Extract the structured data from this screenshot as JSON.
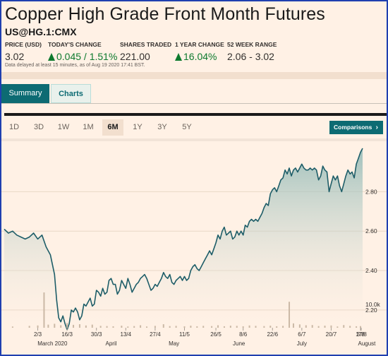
{
  "header": {
    "title": "Copper High Grade Front Month Futures",
    "symbol": "US@HG.1:CMX",
    "stats": [
      {
        "label": "PRICE (USD)",
        "value": "3.02",
        "green": false,
        "arrow": false
      },
      {
        "label": "TODAY'S CHANGE",
        "value": "0.045 / 1.51%",
        "green": true,
        "arrow": true
      },
      {
        "label": "SHARES TRADED",
        "value": "221.00",
        "green": false,
        "arrow": false
      },
      {
        "label": "1 YEAR CHANGE",
        "value": "16.04%",
        "green": true,
        "arrow": true
      },
      {
        "label": "52 WEEK RANGE",
        "value": "2.06 - 3.02",
        "green": false,
        "arrow": false
      }
    ],
    "delay_note": "Data delayed at least 15 minutes, as of Aug 19 2020 17:41 BST."
  },
  "tabs": [
    {
      "label": "Summary",
      "active": true
    },
    {
      "label": "Charts",
      "active": false
    }
  ],
  "range_buttons": [
    "1D",
    "3D",
    "1W",
    "1M",
    "6M",
    "1Y",
    "3Y",
    "5Y"
  ],
  "selected_range": "6M",
  "comparisons_label": "Comparisons",
  "comparisons_icon": "chevron-right-icon",
  "colors": {
    "accent": "#0d6b73",
    "positive": "#0d7a2e",
    "background": "#fff1e5",
    "frame": "#1f3fb0"
  },
  "chart_data": {
    "type": "area",
    "y_ticks": [
      "2.80",
      "2.60",
      "2.40",
      "2.20"
    ],
    "ylim": [
      2.05,
      3.02
    ],
    "volume_tick": "10.0k",
    "volume_max": 17000,
    "x_day_range": [
      0,
      171
    ],
    "x_ticks": [
      {
        "label": "2/3",
        "day": 16
      },
      {
        "label": "16/3",
        "day": 30
      },
      {
        "label": "30/3",
        "day": 44
      },
      {
        "label": "13/4",
        "day": 58
      },
      {
        "label": "27/4",
        "day": 72
      },
      {
        "label": "11/5",
        "day": 86
      },
      {
        "label": "26/5",
        "day": 101
      },
      {
        "label": "8/6",
        "day": 114
      },
      {
        "label": "22/6",
        "day": 128
      },
      {
        "label": "6/7",
        "day": 142
      },
      {
        "label": "20/7",
        "day": 156
      },
      {
        "label": "3/8",
        "day": 170
      },
      {
        "label": "17/8",
        "day": 184
      }
    ],
    "months": [
      {
        "label": "March 2020",
        "day": 23
      },
      {
        "label": "April",
        "day": 51
      },
      {
        "label": "May",
        "day": 81
      },
      {
        "label": "June",
        "day": 112
      },
      {
        "label": "July",
        "day": 142
      },
      {
        "label": "August",
        "day": 173
      }
    ],
    "price_points": [
      [
        0,
        2.61
      ],
      [
        2,
        2.59
      ],
      [
        4,
        2.6
      ],
      [
        6,
        2.58
      ],
      [
        8,
        2.57
      ],
      [
        10,
        2.56
      ],
      [
        12,
        2.57
      ],
      [
        14,
        2.59
      ],
      [
        16,
        2.56
      ],
      [
        18,
        2.58
      ],
      [
        20,
        2.52
      ],
      [
        22,
        2.48
      ],
      [
        24,
        2.38
      ],
      [
        25,
        2.25
      ],
      [
        26,
        2.16
      ],
      [
        27,
        2.14
      ],
      [
        28,
        2.17
      ],
      [
        29,
        2.13
      ],
      [
        30,
        2.1
      ],
      [
        31,
        2.13
      ],
      [
        32,
        2.2
      ],
      [
        33,
        2.19
      ],
      [
        34,
        2.21
      ],
      [
        35,
        2.19
      ],
      [
        36,
        2.15
      ],
      [
        37,
        2.17
      ],
      [
        38,
        2.23
      ],
      [
        39,
        2.22
      ],
      [
        40,
        2.24
      ],
      [
        41,
        2.26
      ],
      [
        42,
        2.22
      ],
      [
        43,
        2.23
      ],
      [
        44,
        2.3
      ],
      [
        45,
        2.29
      ],
      [
        46,
        2.27
      ],
      [
        47,
        2.31
      ],
      [
        48,
        2.28
      ],
      [
        49,
        2.29
      ],
      [
        50,
        2.35
      ],
      [
        51,
        2.36
      ],
      [
        52,
        2.33
      ],
      [
        53,
        2.33
      ],
      [
        54,
        2.28
      ],
      [
        55,
        2.3
      ],
      [
        56,
        2.35
      ],
      [
        57,
        2.33
      ],
      [
        58,
        2.31
      ],
      [
        59,
        2.36
      ],
      [
        60,
        2.33
      ],
      [
        61,
        2.29
      ],
      [
        62,
        2.31
      ],
      [
        63,
        2.33
      ],
      [
        64,
        2.34
      ],
      [
        65,
        2.36
      ],
      [
        66,
        2.37
      ],
      [
        67,
        2.38
      ],
      [
        68,
        2.36
      ],
      [
        69,
        2.33
      ],
      [
        70,
        2.3
      ],
      [
        71,
        2.31
      ],
      [
        72,
        2.33
      ],
      [
        73,
        2.32
      ],
      [
        74,
        2.34
      ],
      [
        75,
        2.36
      ],
      [
        76,
        2.39
      ],
      [
        77,
        2.37
      ],
      [
        78,
        2.36
      ],
      [
        79,
        2.38
      ],
      [
        80,
        2.34
      ],
      [
        81,
        2.33
      ],
      [
        82,
        2.35
      ],
      [
        83,
        2.36
      ],
      [
        84,
        2.37
      ],
      [
        85,
        2.35
      ],
      [
        86,
        2.37
      ],
      [
        87,
        2.35
      ],
      [
        88,
        2.36
      ],
      [
        89,
        2.4
      ],
      [
        90,
        2.42
      ],
      [
        91,
        2.43
      ],
      [
        92,
        2.41
      ],
      [
        93,
        2.4
      ],
      [
        94,
        2.42
      ],
      [
        95,
        2.44
      ],
      [
        96,
        2.46
      ],
      [
        97,
        2.48
      ],
      [
        98,
        2.5
      ],
      [
        99,
        2.48
      ],
      [
        100,
        2.51
      ],
      [
        101,
        2.54
      ],
      [
        102,
        2.58
      ],
      [
        103,
        2.56
      ],
      [
        104,
        2.6
      ],
      [
        105,
        2.62
      ],
      [
        106,
        2.58
      ],
      [
        107,
        2.59
      ],
      [
        108,
        2.6
      ],
      [
        109,
        2.56
      ],
      [
        110,
        2.57
      ],
      [
        111,
        2.6
      ],
      [
        112,
        2.58
      ],
      [
        113,
        2.6
      ],
      [
        114,
        2.58
      ],
      [
        115,
        2.63
      ],
      [
        116,
        2.62
      ],
      [
        117,
        2.65
      ],
      [
        118,
        2.66
      ],
      [
        119,
        2.65
      ],
      [
        120,
        2.66
      ],
      [
        121,
        2.65
      ],
      [
        122,
        2.67
      ],
      [
        123,
        2.69
      ],
      [
        124,
        2.72
      ],
      [
        125,
        2.74
      ],
      [
        126,
        2.73
      ],
      [
        127,
        2.79
      ],
      [
        128,
        2.81
      ],
      [
        129,
        2.82
      ],
      [
        130,
        2.8
      ],
      [
        131,
        2.83
      ],
      [
        132,
        2.86
      ],
      [
        133,
        2.87
      ],
      [
        134,
        2.91
      ],
      [
        135,
        2.89
      ],
      [
        136,
        2.92
      ],
      [
        137,
        2.88
      ],
      [
        138,
        2.91
      ],
      [
        139,
        2.92
      ],
      [
        140,
        2.9
      ],
      [
        141,
        2.92
      ],
      [
        142,
        2.94
      ],
      [
        143,
        2.92
      ],
      [
        144,
        2.91
      ],
      [
        145,
        2.91
      ],
      [
        146,
        2.92
      ],
      [
        147,
        2.91
      ],
      [
        148,
        2.92
      ],
      [
        149,
        2.91
      ],
      [
        150,
        2.86
      ],
      [
        151,
        2.88
      ],
      [
        152,
        2.93
      ],
      [
        153,
        2.91
      ],
      [
        154,
        2.9
      ],
      [
        155,
        2.8
      ],
      [
        156,
        2.84
      ],
      [
        157,
        2.88
      ],
      [
        158,
        2.86
      ],
      [
        159,
        2.88
      ],
      [
        160,
        2.83
      ],
      [
        161,
        2.8
      ],
      [
        162,
        2.84
      ],
      [
        163,
        2.88
      ],
      [
        164,
        2.91
      ],
      [
        165,
        2.89
      ],
      [
        166,
        2.9
      ],
      [
        167,
        2.87
      ],
      [
        168,
        2.94
      ],
      [
        169,
        2.97
      ],
      [
        170,
        3.0
      ],
      [
        171,
        3.02
      ]
    ],
    "volume_bars": [
      [
        4,
        600
      ],
      [
        12,
        900
      ],
      [
        16,
        1100
      ],
      [
        19,
        17000
      ],
      [
        21,
        1500
      ],
      [
        24,
        1900
      ],
      [
        27,
        1200
      ],
      [
        30,
        2300
      ],
      [
        33,
        1400
      ],
      [
        36,
        1700
      ],
      [
        39,
        1100
      ],
      [
        42,
        1500
      ],
      [
        46,
        900
      ],
      [
        49,
        800
      ],
      [
        52,
        700
      ],
      [
        56,
        1000
      ],
      [
        59,
        600
      ],
      [
        62,
        800
      ],
      [
        65,
        1200
      ],
      [
        68,
        600
      ],
      [
        72,
        900
      ],
      [
        76,
        1700
      ],
      [
        79,
        800
      ],
      [
        82,
        900
      ],
      [
        86,
        700
      ],
      [
        89,
        1000
      ],
      [
        92,
        700
      ],
      [
        95,
        900
      ],
      [
        99,
        800
      ],
      [
        102,
        1200
      ],
      [
        105,
        700
      ],
      [
        108,
        1000
      ],
      [
        111,
        900
      ],
      [
        114,
        700
      ],
      [
        117,
        1100
      ],
      [
        120,
        900
      ],
      [
        124,
        800
      ],
      [
        127,
        1000
      ],
      [
        130,
        700
      ],
      [
        133,
        900
      ],
      [
        136,
        12500
      ],
      [
        138,
        2100
      ],
      [
        141,
        1600
      ],
      [
        144,
        1200
      ],
      [
        147,
        1300
      ],
      [
        150,
        800
      ],
      [
        153,
        1000
      ],
      [
        156,
        1100
      ],
      [
        159,
        600
      ],
      [
        162,
        1300
      ],
      [
        165,
        900
      ],
      [
        168,
        700
      ],
      [
        170,
        800
      ]
    ]
  }
}
